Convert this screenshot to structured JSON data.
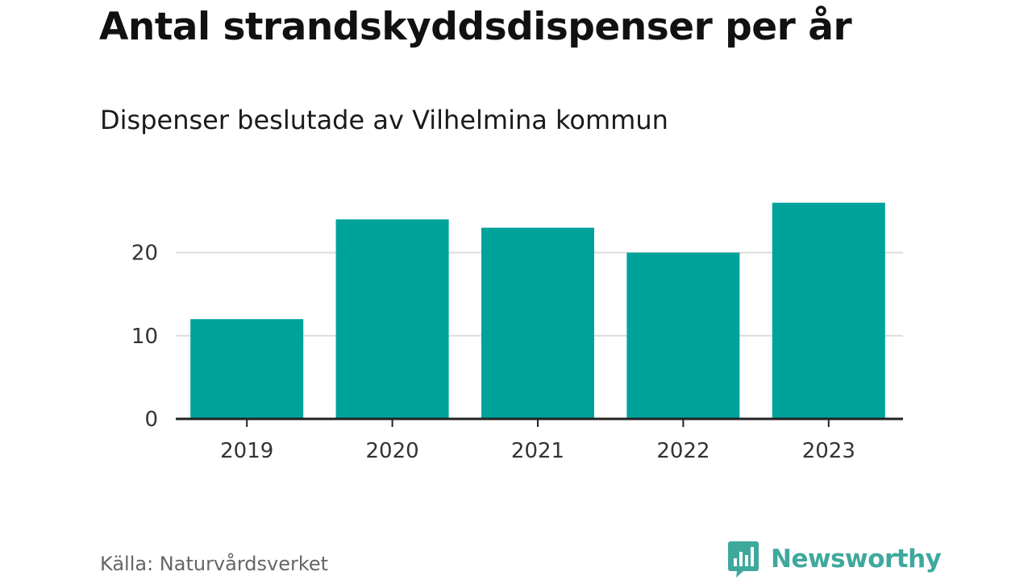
{
  "header": {
    "title": "Antal strandskyddsdispenser per år",
    "subtitle": "Dispenser beslutade av Vilhelmina kommun"
  },
  "footer": {
    "source": "Källa: Naturvårdsverket",
    "brand": "Newsworthy"
  },
  "colors": {
    "bar": "#00a39a",
    "grid": "#dddddd",
    "axis": "#222222",
    "brand": "#3fa89d"
  },
  "chart_data": {
    "type": "bar",
    "title": "Antal strandskyddsdispenser per år",
    "subtitle": "Dispenser beslutade av Vilhelmina kommun",
    "categories": [
      "2019",
      "2020",
      "2021",
      "2022",
      "2023"
    ],
    "values": [
      12,
      24,
      23,
      20,
      26
    ],
    "xlabel": "",
    "ylabel": "",
    "ylim": [
      0,
      30
    ],
    "yticks": [
      0,
      10,
      20
    ],
    "ytick_labels": [
      "0",
      "10",
      "20"
    ],
    "grid": true,
    "legend": "none"
  }
}
